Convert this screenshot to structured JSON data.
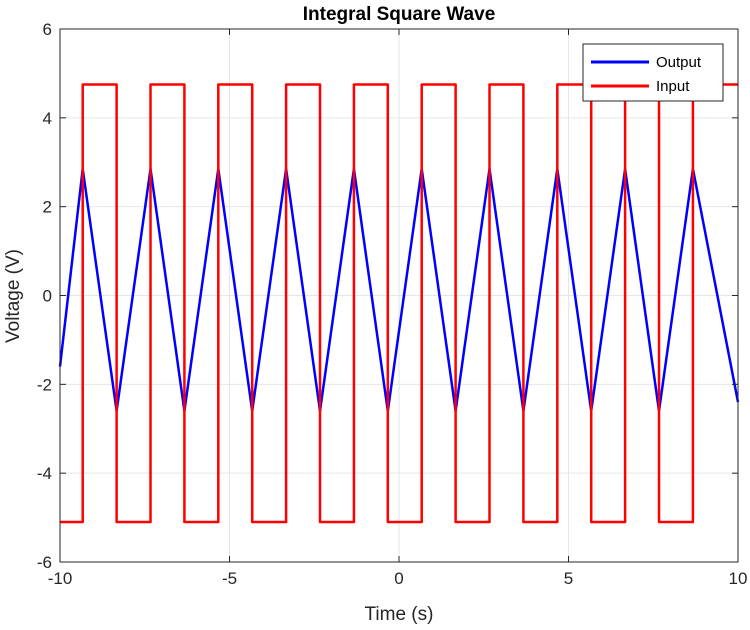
{
  "chart_data": {
    "type": "line",
    "title": "Integral Square Wave",
    "xlabel": "Time (s)",
    "ylabel": "Voltage (V)",
    "xlim": [
      -10,
      10
    ],
    "ylim": [
      -6,
      6
    ],
    "xticks": [
      -10,
      -5,
      0,
      5,
      10
    ],
    "yticks": [
      -6,
      -4,
      -2,
      0,
      2,
      4,
      6
    ],
    "xtick_labels": [
      "-10",
      "-5",
      "0",
      "5",
      "10"
    ],
    "ytick_labels": [
      "-6",
      "-4",
      "-2",
      "0",
      "2",
      "4",
      "6"
    ],
    "grid": true,
    "legend_position": "top-right",
    "series": [
      {
        "name": "Output",
        "color": "#0000ff",
        "x": [
          -10.0,
          -9.33,
          -8.33,
          -7.33,
          -6.33,
          -5.33,
          -4.33,
          -3.33,
          -2.33,
          -1.33,
          -0.33,
          0.67,
          1.67,
          2.67,
          3.67,
          4.67,
          5.67,
          6.67,
          7.67,
          8.67,
          10.0
        ],
        "values": [
          -1.6,
          2.85,
          -2.6,
          2.85,
          -2.6,
          2.85,
          -2.6,
          2.85,
          -2.6,
          2.85,
          -2.6,
          2.85,
          -2.6,
          2.85,
          -2.6,
          2.85,
          -2.6,
          2.85,
          -2.6,
          2.85,
          -2.4
        ]
      },
      {
        "name": "Input",
        "color": "#ff0000",
        "x": [
          -10.0,
          -9.33,
          -9.33,
          -8.33,
          -8.33,
          -7.33,
          -7.33,
          -6.33,
          -6.33,
          -5.33,
          -5.33,
          -4.33,
          -4.33,
          -3.33,
          -3.33,
          -2.33,
          -2.33,
          -1.33,
          -1.33,
          -0.33,
          -0.33,
          0.67,
          0.67,
          1.67,
          1.67,
          2.67,
          2.67,
          3.67,
          3.67,
          4.67,
          4.67,
          5.67,
          5.67,
          6.67,
          6.67,
          7.67,
          7.67,
          8.67,
          8.67,
          10.0
        ],
        "values": [
          -5.1,
          -5.1,
          4.75,
          4.75,
          -5.1,
          -5.1,
          4.75,
          4.75,
          -5.1,
          -5.1,
          4.75,
          4.75,
          -5.1,
          -5.1,
          4.75,
          4.75,
          -5.1,
          -5.1,
          4.75,
          4.75,
          -5.1,
          -5.1,
          4.75,
          4.75,
          -5.1,
          -5.1,
          4.75,
          4.75,
          -5.1,
          -5.1,
          4.75,
          4.75,
          -5.1,
          -5.1,
          4.75,
          4.75,
          -5.1,
          -5.1,
          4.75,
          4.75
        ]
      }
    ]
  }
}
